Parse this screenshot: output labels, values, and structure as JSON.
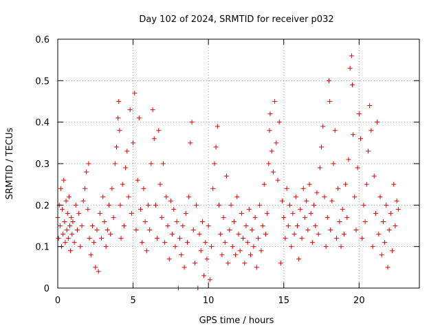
{
  "colors": {
    "series": "#e00000",
    "axis": "#000000",
    "grid": "#a0a0a0",
    "background": "#ffffff"
  },
  "chart_data": {
    "type": "scatter",
    "title": "Day 102 of 2024, SRMTID for receiver p032",
    "xlabel": "GPS time / hours",
    "ylabel": "SRMTID / TECUs",
    "xlim": [
      0,
      24
    ],
    "ylim": [
      0,
      0.6
    ],
    "xticks": [
      0,
      5,
      10,
      15,
      20
    ],
    "yticks": [
      0,
      0.1,
      0.2,
      0.3,
      0.4,
      0.5,
      0.6
    ],
    "xtick_labels": [
      "0",
      "5",
      "10",
      "15",
      "20"
    ],
    "ytick_labels": [
      "0",
      "0.1",
      "0.2",
      "0.3",
      "0.4",
      "0.5",
      "0.6"
    ],
    "grid": true,
    "legend": "none",
    "marker": "plus",
    "series": [
      {
        "name": "SRMTID",
        "points": [
          [
            0.0,
            0.17
          ],
          [
            0.05,
            0.12
          ],
          [
            0.1,
            0.2
          ],
          [
            0.15,
            0.15
          ],
          [
            0.2,
            0.24
          ],
          [
            0.25,
            0.1
          ],
          [
            0.3,
            0.19
          ],
          [
            0.35,
            0.13
          ],
          [
            0.4,
            0.26
          ],
          [
            0.45,
            0.16
          ],
          [
            0.5,
            0.11
          ],
          [
            0.55,
            0.21
          ],
          [
            0.6,
            0.14
          ],
          [
            0.65,
            0.18
          ],
          [
            0.7,
            0.12
          ],
          [
            0.75,
            0.22
          ],
          [
            0.8,
            0.15
          ],
          [
            0.85,
            0.09
          ],
          [
            0.9,
            0.17
          ],
          [
            0.95,
            0.13
          ],
          [
            1.0,
            0.16
          ],
          [
            1.1,
            0.11
          ],
          [
            1.2,
            0.2
          ],
          [
            1.3,
            0.14
          ],
          [
            1.4,
            0.18
          ],
          [
            1.5,
            0.1
          ],
          [
            1.6,
            0.15
          ],
          [
            1.7,
            0.21
          ],
          [
            1.8,
            0.24
          ],
          [
            1.9,
            0.28
          ],
          [
            2.0,
            0.19
          ],
          [
            2.05,
            0.3
          ],
          [
            2.1,
            0.12
          ],
          [
            2.2,
            0.08
          ],
          [
            2.3,
            0.15
          ],
          [
            2.4,
            0.11
          ],
          [
            2.5,
            0.05
          ],
          [
            2.6,
            0.14
          ],
          [
            2.7,
            0.04
          ],
          [
            2.8,
            0.18
          ],
          [
            2.9,
            0.12
          ],
          [
            3.0,
            0.22
          ],
          [
            3.1,
            0.16
          ],
          [
            3.2,
            0.1
          ],
          [
            3.3,
            0.14
          ],
          [
            3.4,
            0.2
          ],
          [
            3.5,
            0.13
          ],
          [
            3.6,
            0.24
          ],
          [
            3.7,
            0.17
          ],
          [
            3.8,
            0.3
          ],
          [
            3.9,
            0.34
          ],
          [
            4.0,
            0.41
          ],
          [
            4.05,
            0.45
          ],
          [
            4.1,
            0.38
          ],
          [
            4.15,
            0.2
          ],
          [
            4.2,
            0.12
          ],
          [
            4.3,
            0.25
          ],
          [
            4.4,
            0.15
          ],
          [
            4.5,
            0.29
          ],
          [
            4.6,
            0.33
          ],
          [
            4.7,
            0.22
          ],
          [
            4.8,
            0.43
          ],
          [
            4.9,
            0.18
          ],
          [
            5.0,
            0.35
          ],
          [
            5.1,
            0.47
          ],
          [
            5.2,
            0.14
          ],
          [
            5.3,
            0.26
          ],
          [
            5.4,
            0.41
          ],
          [
            5.5,
            0.19
          ],
          [
            5.6,
            0.11
          ],
          [
            5.7,
            0.24
          ],
          [
            5.8,
            0.16
          ],
          [
            5.9,
            0.09
          ],
          [
            6.0,
            0.2
          ],
          [
            6.1,
            0.14
          ],
          [
            6.2,
            0.3
          ],
          [
            6.3,
            0.43
          ],
          [
            6.4,
            0.36
          ],
          [
            6.5,
            0.2
          ],
          [
            6.6,
            0.12
          ],
          [
            6.7,
            0.38
          ],
          [
            6.8,
            0.25
          ],
          [
            6.9,
            0.17
          ],
          [
            7.0,
            0.3
          ],
          [
            7.1,
            0.11
          ],
          [
            7.2,
            0.22
          ],
          [
            7.3,
            0.15
          ],
          [
            7.4,
            0.07
          ],
          [
            7.5,
            0.21
          ],
          [
            7.6,
            0.13
          ],
          [
            7.7,
            0.19
          ],
          [
            7.8,
            0.1
          ],
          [
            7.9,
            0.16
          ],
          [
            8.0,
            0.0
          ],
          [
            8.1,
            0.12
          ],
          [
            8.2,
            0.08
          ],
          [
            8.3,
            0.15
          ],
          [
            8.4,
            0.05
          ],
          [
            8.5,
            0.18
          ],
          [
            8.6,
            0.11
          ],
          [
            8.7,
            0.22
          ],
          [
            8.8,
            0.35
          ],
          [
            8.9,
            0.4
          ],
          [
            9.0,
            0.14
          ],
          [
            9.1,
            0.06
          ],
          [
            9.2,
            0.2
          ],
          [
            9.3,
            0.0
          ],
          [
            9.4,
            0.13
          ],
          [
            9.5,
            0.09
          ],
          [
            9.6,
            0.16
          ],
          [
            9.7,
            0.03
          ],
          [
            9.8,
            0.11
          ],
          [
            9.9,
            0.07
          ],
          [
            10.0,
            0.15
          ],
          [
            10.1,
            0.02
          ],
          [
            10.2,
            0.1
          ],
          [
            10.3,
            0.24
          ],
          [
            10.4,
            0.3
          ],
          [
            10.5,
            0.34
          ],
          [
            10.6,
            0.39
          ],
          [
            10.7,
            0.2
          ],
          [
            10.8,
            0.13
          ],
          [
            10.9,
            0.08
          ],
          [
            11.0,
            0.17
          ],
          [
            11.1,
            0.11
          ],
          [
            11.2,
            0.27
          ],
          [
            11.3,
            0.06
          ],
          [
            11.4,
            0.14
          ],
          [
            11.5,
            0.2
          ],
          [
            11.6,
            0.1
          ],
          [
            11.7,
            0.16
          ],
          [
            11.8,
            0.08
          ],
          [
            11.9,
            0.22
          ],
          [
            12.0,
            0.13
          ],
          [
            12.1,
            0.09
          ],
          [
            12.2,
            0.18
          ],
          [
            12.3,
            0.12
          ],
          [
            12.4,
            0.06
          ],
          [
            12.5,
            0.15
          ],
          [
            12.6,
            0.11
          ],
          [
            12.7,
            0.19
          ],
          [
            12.8,
            0.08
          ],
          [
            12.9,
            0.14
          ],
          [
            13.0,
            0.1
          ],
          [
            13.1,
            0.17
          ],
          [
            13.2,
            0.05
          ],
          [
            13.3,
            0.12
          ],
          [
            13.4,
            0.2
          ],
          [
            13.5,
            0.09
          ],
          [
            13.6,
            0.15
          ],
          [
            13.7,
            0.25
          ],
          [
            13.8,
            0.13
          ],
          [
            13.9,
            0.18
          ],
          [
            14.0,
            0.3
          ],
          [
            14.05,
            0.38
          ],
          [
            14.1,
            0.42
          ],
          [
            14.2,
            0.33
          ],
          [
            14.3,
            0.28
          ],
          [
            14.4,
            0.45
          ],
          [
            14.5,
            0.35
          ],
          [
            14.6,
            0.26
          ],
          [
            14.7,
            0.4
          ],
          [
            14.8,
            0.06
          ],
          [
            14.9,
            0.21
          ],
          [
            15.0,
            0.17
          ],
          [
            15.1,
            0.12
          ],
          [
            15.2,
            0.24
          ],
          [
            15.3,
            0.15
          ],
          [
            15.4,
            0.2
          ],
          [
            15.5,
            0.1
          ],
          [
            15.6,
            0.18
          ],
          [
            15.7,
            0.13
          ],
          [
            15.8,
            0.22
          ],
          [
            15.9,
            0.15
          ],
          [
            16.0,
            0.07
          ],
          [
            16.1,
            0.19
          ],
          [
            16.2,
            0.12
          ],
          [
            16.3,
            0.24
          ],
          [
            16.4,
            0.17
          ],
          [
            16.5,
            0.21
          ],
          [
            16.6,
            0.14
          ],
          [
            16.7,
            0.25
          ],
          [
            16.8,
            0.18
          ],
          [
            16.9,
            0.11
          ],
          [
            17.0,
            0.2
          ],
          [
            17.1,
            0.15
          ],
          [
            17.2,
            0.23
          ],
          [
            17.3,
            0.13
          ],
          [
            17.4,
            0.29
          ],
          [
            17.5,
            0.34
          ],
          [
            17.6,
            0.39
          ],
          [
            17.7,
            0.22
          ],
          [
            17.8,
            0.1
          ],
          [
            17.9,
            0.17
          ],
          [
            18.0,
            0.5
          ],
          [
            18.05,
            0.45
          ],
          [
            18.1,
            0.14
          ],
          [
            18.2,
            0.21
          ],
          [
            18.3,
            0.3
          ],
          [
            18.4,
            0.38
          ],
          [
            18.5,
            0.12
          ],
          [
            18.6,
            0.24
          ],
          [
            18.7,
            0.16
          ],
          [
            18.8,
            0.1
          ],
          [
            18.9,
            0.19
          ],
          [
            19.0,
            0.13
          ],
          [
            19.1,
            0.25
          ],
          [
            19.2,
            0.17
          ],
          [
            19.3,
            0.31
          ],
          [
            19.4,
            0.53
          ],
          [
            19.5,
            0.56
          ],
          [
            19.55,
            0.49
          ],
          [
            19.6,
            0.37
          ],
          [
            19.7,
            0.22
          ],
          [
            19.8,
            0.14
          ],
          [
            19.9,
            0.29
          ],
          [
            20.0,
            0.42
          ],
          [
            20.1,
            0.36
          ],
          [
            20.2,
            0.12
          ],
          [
            20.3,
            0.2
          ],
          [
            20.4,
            0.16
          ],
          [
            20.5,
            0.25
          ],
          [
            20.6,
            0.33
          ],
          [
            20.7,
            0.44
          ],
          [
            20.8,
            0.38
          ],
          [
            20.9,
            0.1
          ],
          [
            21.0,
            0.27
          ],
          [
            21.1,
            0.18
          ],
          [
            21.2,
            0.4
          ],
          [
            21.3,
            0.13
          ],
          [
            21.4,
            0.22
          ],
          [
            21.5,
            0.08
          ],
          [
            21.6,
            0.16
          ],
          [
            21.7,
            0.11
          ],
          [
            21.8,
            0.2
          ],
          [
            21.9,
            0.05
          ],
          [
            22.0,
            0.14
          ],
          [
            22.1,
            0.18
          ],
          [
            22.2,
            0.09
          ],
          [
            22.3,
            0.25
          ],
          [
            22.4,
            0.15
          ],
          [
            22.5,
            0.21
          ],
          [
            22.6,
            0.19
          ]
        ]
      }
    ]
  }
}
